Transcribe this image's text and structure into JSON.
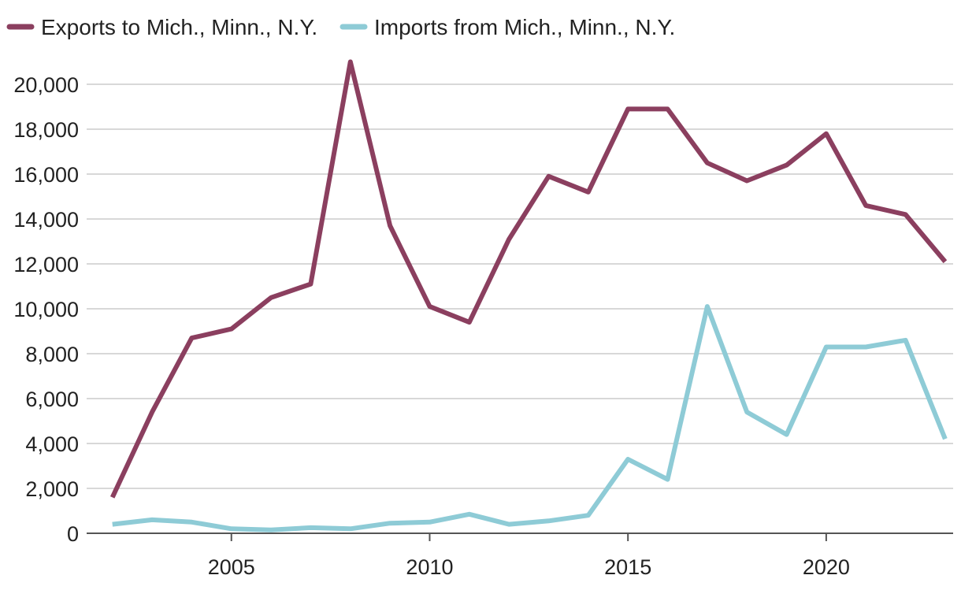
{
  "chart_data": {
    "type": "line",
    "title": "",
    "xlabel": "",
    "ylabel": "",
    "x": [
      2002,
      2003,
      2004,
      2005,
      2006,
      2007,
      2008,
      2009,
      2010,
      2011,
      2012,
      2013,
      2014,
      2015,
      2016,
      2017,
      2018,
      2019,
      2020,
      2021,
      2022,
      2023
    ],
    "series": [
      {
        "name": "Exports to Mich., Minn., N.Y.",
        "color": "#8b3f5f",
        "values": [
          1600,
          5400,
          8700,
          9100,
          10500,
          11100,
          21000,
          13700,
          10100,
          9400,
          13100,
          15900,
          15200,
          18900,
          18900,
          16500,
          15700,
          16400,
          17800,
          14600,
          14200,
          12100
        ]
      },
      {
        "name": "Imports from Mich., Minn., N.Y.",
        "color": "#8ecbd6",
        "values": [
          400,
          600,
          500,
          200,
          150,
          250,
          200,
          450,
          500,
          850,
          400,
          550,
          800,
          3300,
          2400,
          10100,
          5400,
          4400,
          8300,
          8300,
          8600,
          4200
        ]
      }
    ],
    "xlim": [
      2001.35,
      2023.2
    ],
    "ylim": [
      0,
      20000
    ],
    "yticks": [
      0,
      2000,
      4000,
      6000,
      8000,
      10000,
      12000,
      14000,
      16000,
      18000,
      20000
    ],
    "ytick_labels": [
      "0",
      "2,000",
      "4,000",
      "6,000",
      "8,000",
      "10,000",
      "12,000",
      "14,000",
      "16,000",
      "18,000",
      "20,000"
    ],
    "xticks": [
      2005,
      2010,
      2015,
      2020
    ],
    "xtick_labels": [
      "2005",
      "2010",
      "2015",
      "2020"
    ],
    "grid": "horizontal",
    "legend_position": "top-left"
  }
}
